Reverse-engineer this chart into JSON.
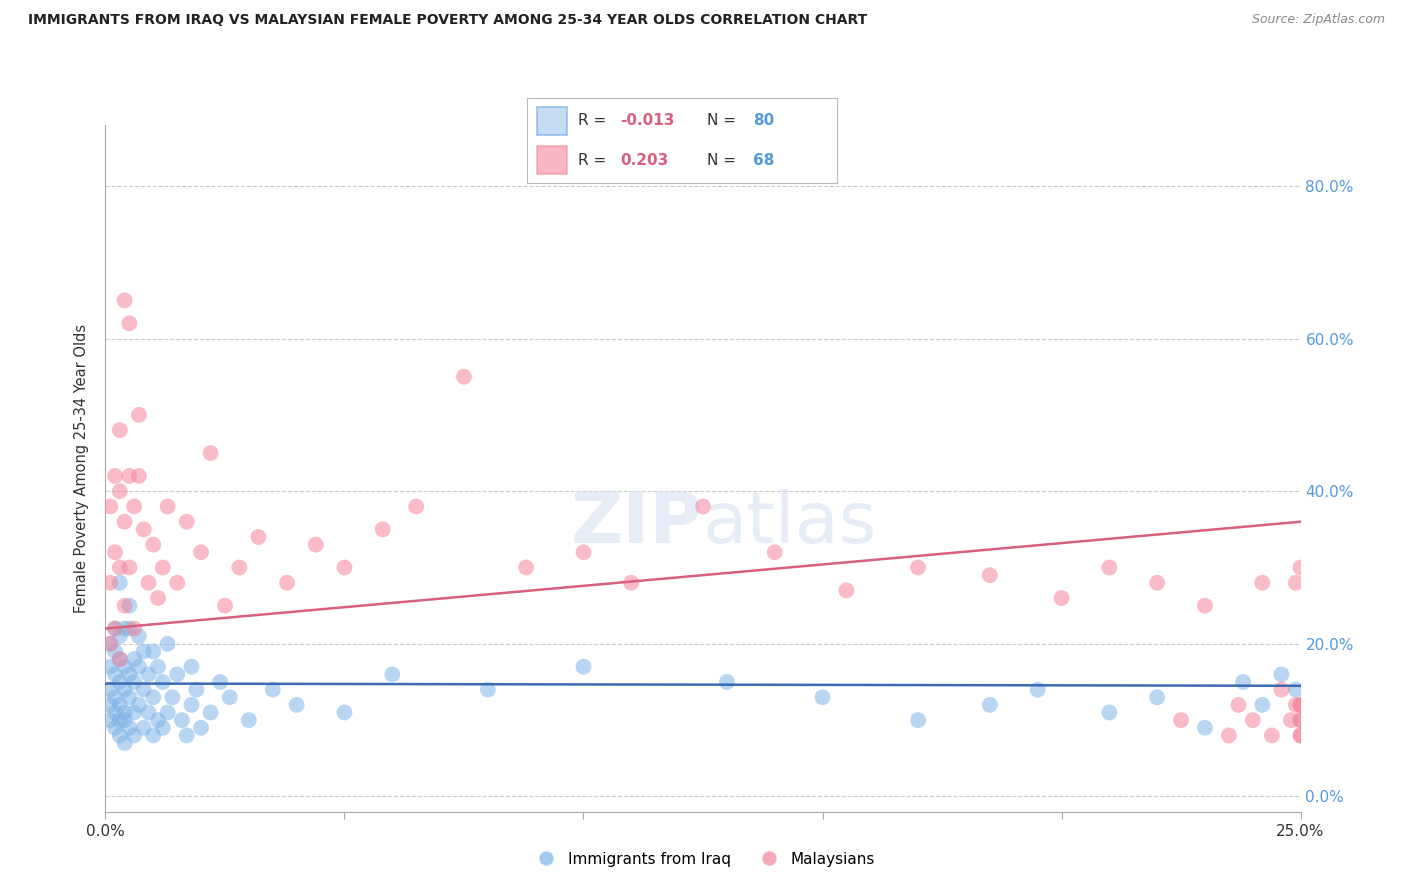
{
  "title": "IMMIGRANTS FROM IRAQ VS MALAYSIAN FEMALE POVERTY AMONG 25-34 YEAR OLDS CORRELATION CHART",
  "source": "Source: ZipAtlas.com",
  "ylabel": "Female Poverty Among 25-34 Year Olds",
  "xlim": [
    0.0,
    0.25
  ],
  "ylim": [
    -0.02,
    0.88
  ],
  "series1_color": "#7EB3E8",
  "series2_color": "#F4849A",
  "series1_label": "Immigrants from Iraq",
  "series2_label": "Malaysians",
  "R1": -0.013,
  "N1": 80,
  "R2": 0.203,
  "N2": 68,
  "background_color": "#FFFFFF",
  "grid_color": "#CCCCCC",
  "title_color": "#222222",
  "right_axis_color": "#5599DD",
  "trend1_color": "#3B6BB5",
  "trend2_color": "#D95F7E",
  "iraq_x": [
    0.001,
    0.001,
    0.001,
    0.001,
    0.001,
    0.002,
    0.002,
    0.002,
    0.002,
    0.002,
    0.002,
    0.003,
    0.003,
    0.003,
    0.003,
    0.003,
    0.003,
    0.003,
    0.004,
    0.004,
    0.004,
    0.004,
    0.004,
    0.004,
    0.005,
    0.005,
    0.005,
    0.005,
    0.005,
    0.006,
    0.006,
    0.006,
    0.006,
    0.007,
    0.007,
    0.007,
    0.008,
    0.008,
    0.008,
    0.009,
    0.009,
    0.01,
    0.01,
    0.01,
    0.011,
    0.011,
    0.012,
    0.012,
    0.013,
    0.013,
    0.014,
    0.015,
    0.016,
    0.017,
    0.018,
    0.018,
    0.019,
    0.02,
    0.022,
    0.024,
    0.026,
    0.03,
    0.035,
    0.04,
    0.05,
    0.06,
    0.08,
    0.1,
    0.13,
    0.15,
    0.17,
    0.185,
    0.195,
    0.21,
    0.22,
    0.23,
    0.238,
    0.242,
    0.246,
    0.249
  ],
  "iraq_y": [
    0.1,
    0.14,
    0.17,
    0.2,
    0.12,
    0.09,
    0.13,
    0.16,
    0.19,
    0.11,
    0.22,
    0.08,
    0.12,
    0.15,
    0.18,
    0.21,
    0.1,
    0.28,
    0.07,
    0.11,
    0.14,
    0.17,
    0.22,
    0.1,
    0.09,
    0.13,
    0.16,
    0.22,
    0.25,
    0.11,
    0.15,
    0.18,
    0.08,
    0.12,
    0.17,
    0.21,
    0.09,
    0.14,
    0.19,
    0.11,
    0.16,
    0.08,
    0.13,
    0.19,
    0.1,
    0.17,
    0.09,
    0.15,
    0.11,
    0.2,
    0.13,
    0.16,
    0.1,
    0.08,
    0.12,
    0.17,
    0.14,
    0.09,
    0.11,
    0.15,
    0.13,
    0.1,
    0.14,
    0.12,
    0.11,
    0.16,
    0.14,
    0.17,
    0.15,
    0.13,
    0.1,
    0.12,
    0.14,
    0.11,
    0.13,
    0.09,
    0.15,
    0.12,
    0.16,
    0.14
  ],
  "malay_x": [
    0.001,
    0.001,
    0.001,
    0.002,
    0.002,
    0.002,
    0.003,
    0.003,
    0.003,
    0.003,
    0.004,
    0.004,
    0.004,
    0.005,
    0.005,
    0.005,
    0.006,
    0.006,
    0.007,
    0.007,
    0.008,
    0.009,
    0.01,
    0.011,
    0.012,
    0.013,
    0.015,
    0.017,
    0.02,
    0.022,
    0.025,
    0.028,
    0.032,
    0.038,
    0.044,
    0.05,
    0.058,
    0.065,
    0.075,
    0.088,
    0.1,
    0.11,
    0.125,
    0.14,
    0.155,
    0.17,
    0.185,
    0.2,
    0.21,
    0.22,
    0.225,
    0.23,
    0.235,
    0.237,
    0.24,
    0.242,
    0.244,
    0.246,
    0.248,
    0.249,
    0.249,
    0.25,
    0.25,
    0.25,
    0.25,
    0.25,
    0.25,
    0.25
  ],
  "malay_y": [
    0.2,
    0.28,
    0.38,
    0.22,
    0.32,
    0.42,
    0.18,
    0.3,
    0.4,
    0.48,
    0.25,
    0.36,
    0.65,
    0.3,
    0.42,
    0.62,
    0.22,
    0.38,
    0.42,
    0.5,
    0.35,
    0.28,
    0.33,
    0.26,
    0.3,
    0.38,
    0.28,
    0.36,
    0.32,
    0.45,
    0.25,
    0.3,
    0.34,
    0.28,
    0.33,
    0.3,
    0.35,
    0.38,
    0.55,
    0.3,
    0.32,
    0.28,
    0.38,
    0.32,
    0.27,
    0.3,
    0.29,
    0.26,
    0.3,
    0.28,
    0.1,
    0.25,
    0.08,
    0.12,
    0.1,
    0.28,
    0.08,
    0.14,
    0.1,
    0.12,
    0.28,
    0.12,
    0.1,
    0.08,
    0.3,
    0.12,
    0.1,
    0.08
  ],
  "iraq_trend_x0": 0.0,
  "iraq_trend_y0": 0.148,
  "iraq_trend_x1": 0.25,
  "iraq_trend_y1": 0.145,
  "malay_trend_x0": 0.0,
  "malay_trend_y0": 0.22,
  "malay_trend_x1": 0.25,
  "malay_trend_y1": 0.36
}
